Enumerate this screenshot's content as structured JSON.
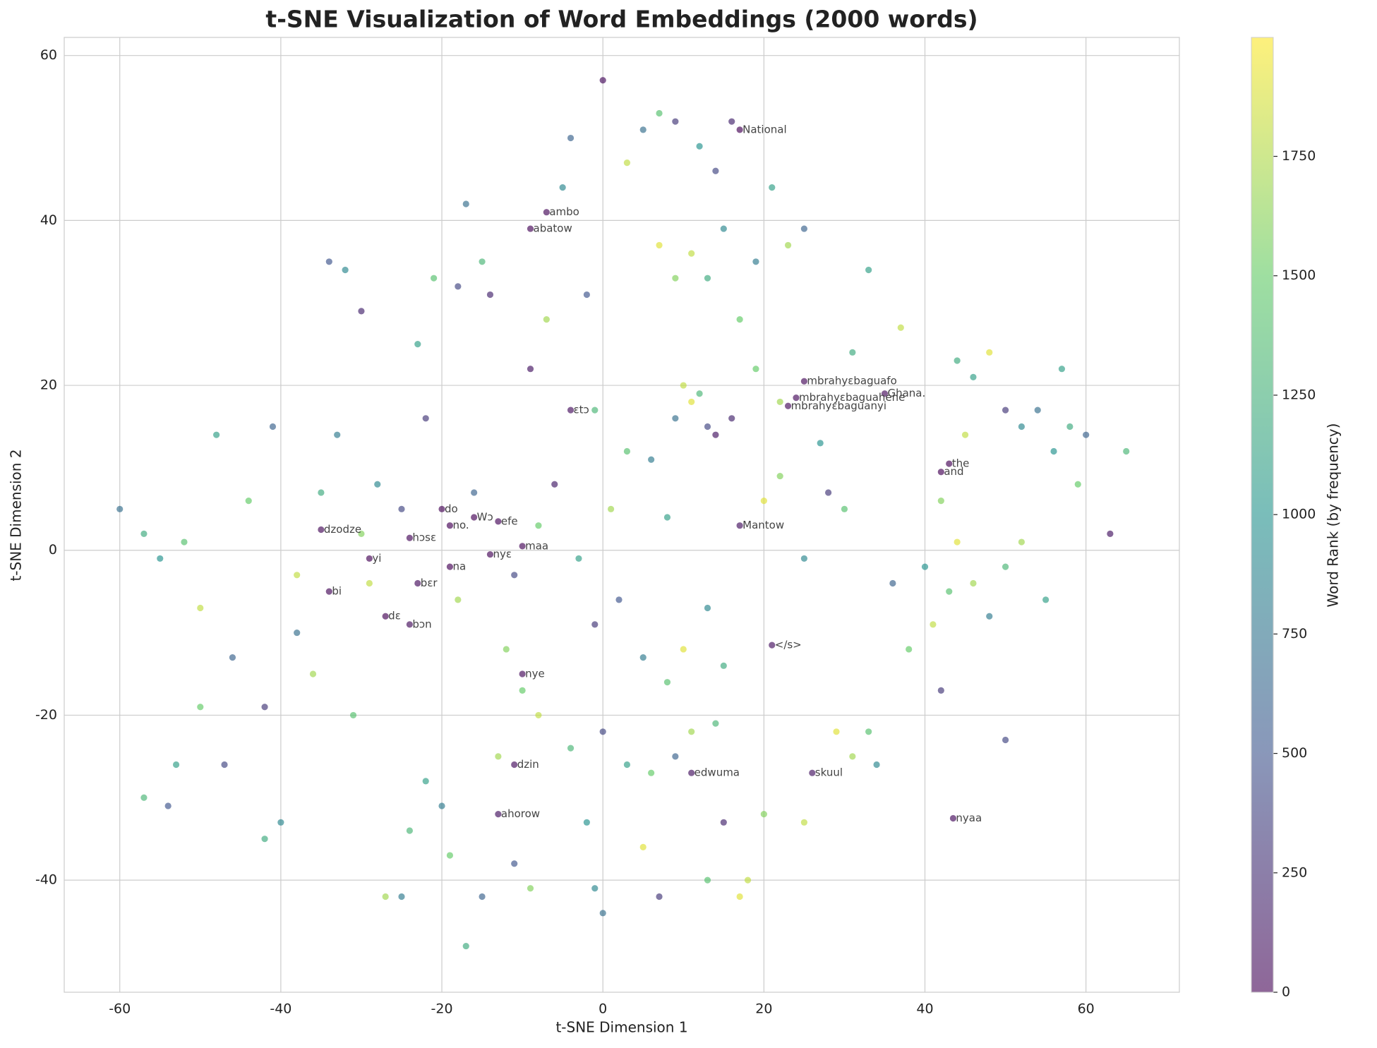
{
  "chart_data": {
    "type": "scatter",
    "title": "t-SNE Visualization of Word Embeddings (2000 words)",
    "xlabel": "t-SNE Dimension 1",
    "ylabel": "t-SNE Dimension 2",
    "colorbar_label": "Word Rank (by frequency)",
    "colormap": "viridis",
    "grid": true,
    "xlim": [
      -66.9,
      71.6
    ],
    "ylim": [
      -53.6,
      62.2
    ],
    "xticks": [
      -60,
      -40,
      -20,
      0,
      20,
      40,
      60
    ],
    "yticks": [
      -40,
      -20,
      0,
      20,
      40,
      60
    ],
    "clim": [
      0,
      1999
    ],
    "cticks": [
      0,
      250,
      500,
      750,
      1000,
      1250,
      1500,
      1750
    ],
    "x": [
      -60,
      -57,
      -55,
      -52,
      -50,
      -48,
      -46,
      -44,
      -42,
      -41,
      -57,
      -54,
      -53,
      -50,
      -47,
      -42,
      -40,
      -38,
      -36,
      -34,
      -32,
      -30,
      -33,
      -31,
      -29,
      -27,
      -25,
      -23,
      -22,
      -21,
      -18,
      -17,
      -15,
      -14,
      -12,
      -10,
      -9,
      -7,
      -5,
      -4,
      -2,
      -1,
      0,
      3,
      5,
      7,
      9,
      12,
      14,
      16,
      7,
      9,
      11,
      13,
      15,
      17,
      19,
      21,
      23,
      25,
      10,
      11,
      12,
      9,
      13,
      14,
      16,
      19,
      22,
      27,
      25,
      28,
      30,
      20,
      22,
      31,
      33,
      37,
      36,
      38,
      40,
      41,
      42,
      43,
      44,
      46,
      48,
      50,
      52,
      50,
      44,
      46,
      48,
      50,
      52,
      54,
      56,
      58,
      60,
      57,
      59,
      55,
      63,
      65,
      42,
      45,
      29,
      31,
      33,
      34,
      25,
      20,
      15,
      13,
      17,
      18,
      7,
      5,
      0,
      -1,
      -9,
      -11,
      -15,
      -17,
      -19,
      -20,
      -22,
      -24,
      -13,
      -8,
      -4,
      -2,
      0,
      3,
      6,
      9,
      11,
      14,
      5,
      8,
      10,
      13,
      15,
      2,
      -1,
      -3,
      1,
      3,
      6,
      8,
      -6,
      -8,
      -11,
      -16,
      -18,
      -25,
      -28,
      -30,
      -35,
      -38,
      17,
      -7,
      -9,
      25,
      24,
      35,
      23,
      -4,
      43,
      42,
      -20,
      -16,
      -13,
      -35,
      -19,
      17,
      -24,
      -10,
      -29,
      -14,
      -19,
      -23,
      -34,
      -27,
      -24,
      21,
      -10,
      -11,
      11,
      26,
      -13,
      43.5
    ],
    "values": [
      5,
      2,
      -1,
      1,
      -7,
      14,
      -13,
      6,
      -19,
      15,
      -30,
      -31,
      -26,
      -19,
      -26,
      -35,
      -33,
      -10,
      -15,
      35,
      34,
      29,
      14,
      -20,
      -4,
      -42,
      -42,
      25,
      16,
      33,
      32,
      42,
      35,
      31,
      -12,
      -17,
      22,
      28,
      44,
      50,
      31,
      17,
      57,
      47,
      51,
      53,
      52,
      49,
      46,
      52,
      37,
      33,
      36,
      33,
      39,
      28,
      35,
      44,
      37,
      39,
      20,
      18,
      19,
      16,
      15,
      14,
      16,
      22,
      18,
      13,
      -1,
      7,
      5,
      6,
      9,
      24,
      34,
      27,
      -4,
      -12,
      -2,
      -9,
      -17,
      -5,
      1,
      -4,
      -8,
      -2,
      1,
      -23,
      23,
      21,
      24,
      17,
      15,
      17,
      12,
      15,
      14,
      22,
      8,
      -6,
      2,
      12,
      6,
      14,
      -22,
      -25,
      -22,
      -26,
      -33,
      -32,
      -33,
      -40,
      -42,
      -40,
      -42,
      -36,
      -44,
      -41,
      -41,
      -38,
      -42,
      -48,
      -37,
      -31,
      -28,
      -34,
      -25,
      -20,
      -24,
      -33,
      -22,
      -26,
      -27,
      -25,
      -22,
      -21,
      -13,
      -16,
      -12,
      -7,
      -14,
      -6,
      -9,
      -1,
      5,
      12,
      11,
      4,
      8,
      3,
      -3,
      7,
      -6,
      5,
      8,
      2,
      7,
      -3,
      51,
      41,
      39,
      20.5,
      18.5,
      19,
      17.5,
      17,
      10.5,
      9.5,
      5,
      4,
      3.5,
      2.5,
      3,
      3,
      1.5,
      0.5,
      -1,
      -0.5,
      -2,
      -4,
      -5,
      -8,
      -9,
      -11.5,
      -15,
      -26,
      -27,
      -27,
      -32,
      -32.5
    ],
    "color_values": [
      700,
      1200,
      1000,
      1400,
      1800,
      1100,
      600,
      1500,
      300,
      600,
      1300,
      500,
      1100,
      1500,
      400,
      1200,
      900,
      700,
      1700,
      500,
      900,
      200,
      800,
      1400,
      1800,
      1700,
      800,
      1100,
      300,
      1400,
      400,
      700,
      1300,
      200,
      1600,
      1500,
      100,
      1700,
      900,
      600,
      500,
      1300,
      50,
      1800,
      700,
      1400,
      300,
      1000,
      400,
      200,
      1900,
      1600,
      1800,
      1200,
      900,
      1500,
      800,
      1100,
      1700,
      600,
      1800,
      1900,
      1300,
      700,
      400,
      100,
      200,
      1500,
      1700,
      1000,
      900,
      300,
      1400,
      1900,
      1600,
      1200,
      1100,
      1800,
      600,
      1500,
      1000,
      1800,
      300,
      1400,
      1900,
      1700,
      800,
      1300,
      1700,
      400,
      1200,
      1100,
      1900,
      300,
      900,
      700,
      1000,
      1200,
      600,
      1100,
      1500,
      1100,
      100,
      1300,
      1600,
      1800,
      1900,
      1700,
      1400,
      900,
      1800,
      1600,
      200,
      1400,
      1900,
      1800,
      300,
      1900,
      700,
      900,
      1600,
      500,
      600,
      1200,
      1500,
      800,
      1100,
      1300,
      1700,
      1800,
      1300,
      1000,
      400,
      1100,
      1500,
      600,
      1700,
      1300,
      800,
      1400,
      1900,
      900,
      1200,
      500,
      300,
      1100,
      1700,
      1400,
      800,
      1100,
      150,
      1500,
      400,
      600,
      1700,
      400,
      900,
      1600,
      1200,
      1800,
      5,
      30,
      20,
      40,
      45,
      60,
      48,
      70,
      0,
      1,
      10,
      3,
      25,
      35,
      8,
      90,
      28,
      18,
      11,
      22,
      2,
      55,
      38,
      12,
      65,
      80,
      42,
      75,
      95,
      100,
      85,
      50
    ],
    "annotations": [
      {
        "text": "National",
        "x": 17,
        "y": 51
      },
      {
        "text": "ambo",
        "x": -7,
        "y": 41
      },
      {
        "text": "abatow",
        "x": -9,
        "y": 39
      },
      {
        "text": "mbrahyɛbaguafo",
        "x": 25,
        "y": 20.5
      },
      {
        "text": "mbrahyɛbaguahene",
        "x": 24,
        "y": 18.5
      },
      {
        "text": "Ghana.",
        "x": 35,
        "y": 19
      },
      {
        "text": "mbrahyɛbaguanyi",
        "x": 23,
        "y": 17.5
      },
      {
        "text": "ɛtɔ",
        "x": -4,
        "y": 17
      },
      {
        "text": "the",
        "x": 43,
        "y": 10.5
      },
      {
        "text": "and",
        "x": 42,
        "y": 9.5
      },
      {
        "text": "do",
        "x": -20,
        "y": 5
      },
      {
        "text": "Wɔ",
        "x": -16,
        "y": 4
      },
      {
        "text": "efe",
        "x": -13,
        "y": 3.5
      },
      {
        "text": "dzodze",
        "x": -35,
        "y": 2.5
      },
      {
        "text": "no.",
        "x": -19,
        "y": 3
      },
      {
        "text": "Mantow",
        "x": 17,
        "y": 3
      },
      {
        "text": "hɔsɛ",
        "x": -24,
        "y": 1.5
      },
      {
        "text": "maa",
        "x": -10,
        "y": 0.5
      },
      {
        "text": "yi",
        "x": -29,
        "y": -1
      },
      {
        "text": "nyɛ",
        "x": -14,
        "y": -0.5
      },
      {
        "text": "na",
        "x": -19,
        "y": -2
      },
      {
        "text": "bɛr",
        "x": -23,
        "y": -4
      },
      {
        "text": "bi",
        "x": -34,
        "y": -5
      },
      {
        "text": "dɛ",
        "x": -27,
        "y": -8
      },
      {
        "text": "bɔn",
        "x": -24,
        "y": -9
      },
      {
        "text": "</s>",
        "x": 21,
        "y": -11.5
      },
      {
        "text": "nye",
        "x": -10,
        "y": -15
      },
      {
        "text": "dzin",
        "x": -11,
        "y": -26
      },
      {
        "text": "edwuma",
        "x": 11,
        "y": -27
      },
      {
        "text": "skuul",
        "x": 26,
        "y": -27
      },
      {
        "text": "ahorow",
        "x": -13,
        "y": -32
      },
      {
        "text": "nyaa",
        "x": 43.5,
        "y": -32.5
      }
    ]
  }
}
